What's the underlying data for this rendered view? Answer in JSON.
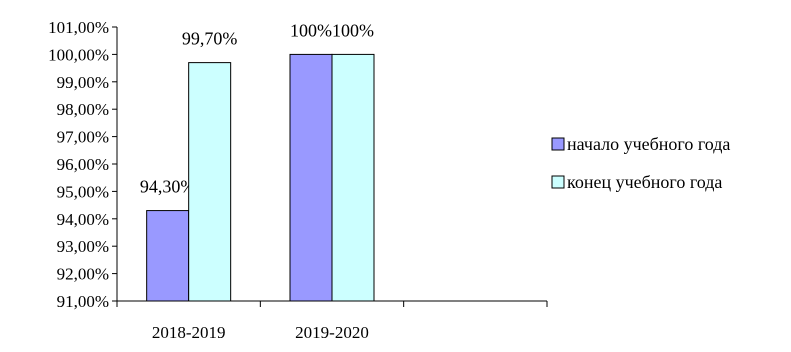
{
  "chart_data": {
    "type": "bar",
    "categories": [
      "2018-2019",
      "2019-2020",
      ""
    ],
    "series": [
      {
        "name": "начало учебного года",
        "values": [
          94.3,
          100,
          null
        ],
        "data_labels": [
          "94,30%",
          "100%",
          ""
        ],
        "color": "#9999ff"
      },
      {
        "name": "конец учебного года",
        "values": [
          99.7,
          100,
          null
        ],
        "data_labels": [
          "99,70%",
          "100%",
          ""
        ],
        "color": "#ccffff"
      }
    ],
    "ylim": [
      91,
      101
    ],
    "ytick_labels": [
      "91,00%",
      "92,00%",
      "93,00%",
      "94,00%",
      "95,00%",
      "96,00%",
      "97,00%",
      "98,00%",
      "99,00%",
      "100,00%",
      "101,00%"
    ],
    "grid": false,
    "legend_position": "right"
  }
}
